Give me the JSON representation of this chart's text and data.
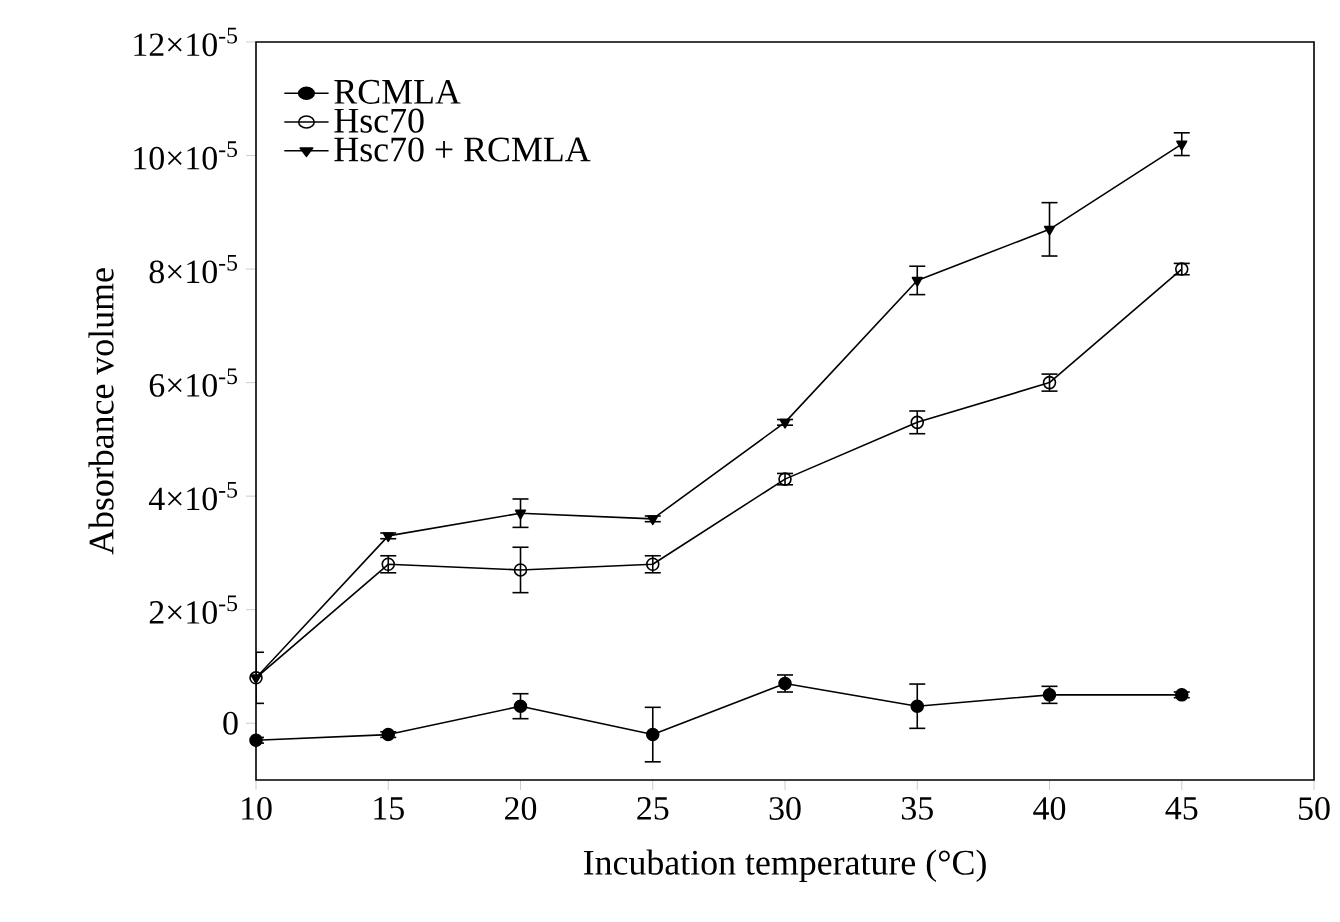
{
  "chart_data": {
    "type": "line",
    "xlabel": "Incubation temperature (°C)",
    "ylabel": "Absorbance volume",
    "x": [
      10,
      15,
      20,
      25,
      30,
      35,
      40,
      45
    ],
    "series": [
      {
        "name": "RCMLA",
        "color": "#000000",
        "marker": "circle",
        "values": [
          -3e-06,
          -2e-06,
          3e-06,
          -2e-06,
          7e-06,
          3e-06,
          5e-06,
          5e-06
        ],
        "errors": [
          5e-07,
          5e-07,
          2.2e-06,
          4.8e-06,
          1.5e-06,
          3.9e-06,
          1.5e-06,
          5e-07
        ]
      },
      {
        "name": "Hsc70",
        "color": "#000000",
        "marker": "circle-open",
        "values": [
          8e-06,
          2.8e-05,
          2.7e-05,
          2.8e-05,
          4.3e-05,
          5.3e-05,
          6e-05,
          8e-05
        ],
        "errors": [
          null,
          1.5e-06,
          4e-06,
          1.5e-06,
          1e-06,
          2e-06,
          1.5e-06,
          1e-06
        ]
      },
      {
        "name": "Hsc70 + RCMLA",
        "color": "#000000",
        "marker": "triangle",
        "values": [
          8e-06,
          3.3e-05,
          3.7e-05,
          3.6e-05,
          5.3e-05,
          7.8e-05,
          8.7e-05,
          0.000102
        ],
        "errors": [
          4.5e-06,
          5e-07,
          2.5e-06,
          5e-07,
          5e-07,
          2.5e-06,
          4.7e-06,
          2e-06
        ]
      }
    ],
    "xlim": [
      10,
      50
    ],
    "xticks": [
      10,
      15,
      20,
      25,
      30,
      35,
      40,
      45,
      50
    ],
    "ylim": [
      -1e-05,
      0.00012
    ],
    "yticks": [
      0,
      {
        "value": 2e-05,
        "label": "2×10$^{-5}$"
      },
      {
        "value": 4e-05,
        "label": "4×10$^{-5}$"
      },
      {
        "value": 6e-05,
        "label": "6×10$^{-5}$"
      },
      {
        "value": 8e-05,
        "label": "8×10$^{-5}$"
      },
      {
        "value": 0.0001,
        "label": "10×10$^{-5}$"
      },
      {
        "value": 0.00012,
        "label": "12×10$^{-5}$"
      }
    ],
    "legend": "top left",
    "line_style": "solid"
  }
}
